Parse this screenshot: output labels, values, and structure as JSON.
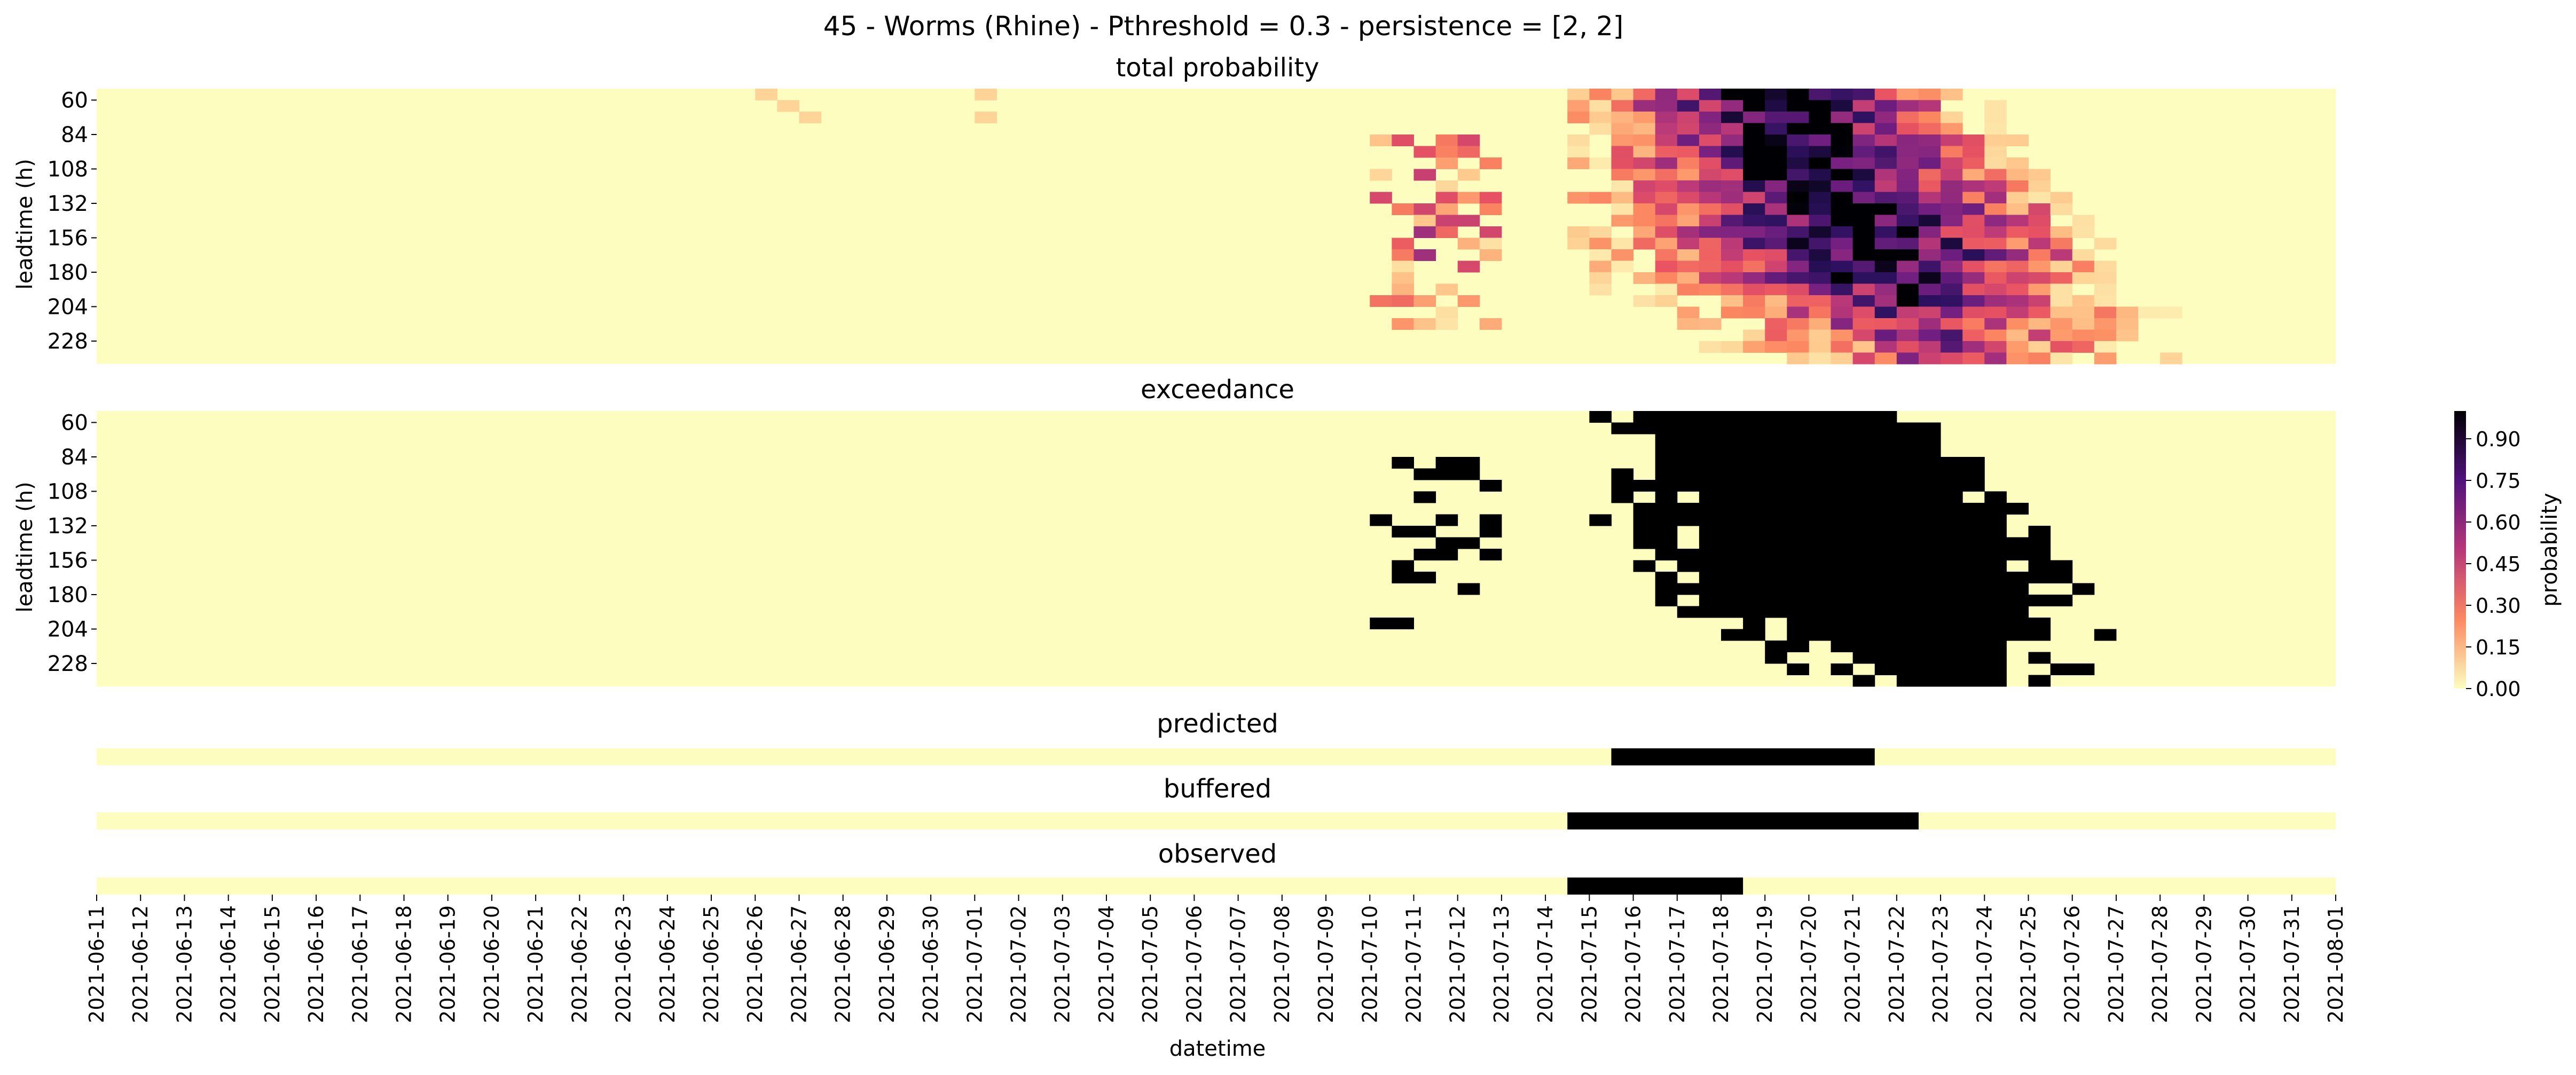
{
  "figure": {
    "suptitle": "45 - Worms (Rhine) - Pthreshold = 0.3 - persistence = [2, 2]",
    "xlabel": "datetime",
    "colorbar": {
      "label": "probability",
      "ticks": [
        "0.00",
        "0.15",
        "0.30",
        "0.45",
        "0.60",
        "0.75",
        "0.90"
      ],
      "tick_values": [
        0,
        0.15,
        0.3,
        0.45,
        0.6,
        0.75,
        0.9
      ],
      "vmin": 0,
      "vmax": 1,
      "colormap": "magma_r",
      "colors": {
        "low": "#fcfdbf",
        "mid_low": "#fc8961",
        "mid": "#b73779",
        "mid_high": "#51127c",
        "high": "#000004"
      }
    }
  },
  "chart_data": [
    {
      "type": "heatmap",
      "title": "total probability",
      "ylabel": "leadtime (h)",
      "y_ticks": [
        "60",
        "84",
        "108",
        "132",
        "156",
        "180",
        "204",
        "228"
      ],
      "leadtime_range_h": [
        60,
        240
      ],
      "x_start": "2021-06-11",
      "x_end": "2021-08-01",
      "cells_per_day": 2,
      "rows": 24,
      "description_of_values": "probability of exceedance per forecast run (x) and leadtime (y); near 0 except 2021-06-26/27, 2021-07-01, 2021-07-10 to 2021-07-12, and main event 2021-07-14 to 2021-07-22 reaching 1.0"
    },
    {
      "type": "heatmap",
      "title": "exceedance",
      "ylabel": "leadtime (h)",
      "y_ticks": [
        "60",
        "84",
        "108",
        "132",
        "156",
        "180",
        "204",
        "228"
      ],
      "threshold": 0.3,
      "values_binary": [
        0,
        1
      ]
    },
    {
      "type": "heatmap",
      "title": "predicted",
      "intervals": [
        [
          "2021-07-15",
          "2021-07-21"
        ]
      ]
    },
    {
      "type": "heatmap",
      "title": "buffered",
      "intervals": [
        [
          "2021-07-14",
          "2021-07-22"
        ]
      ]
    },
    {
      "type": "heatmap",
      "title": "observed",
      "intervals": [
        [
          "2021-07-14",
          "2021-07-18"
        ]
      ]
    }
  ],
  "x_tick_labels": [
    "2021-06-11",
    "2021-06-12",
    "2021-06-13",
    "2021-06-14",
    "2021-06-15",
    "2021-06-16",
    "2021-06-17",
    "2021-06-18",
    "2021-06-19",
    "2021-06-20",
    "2021-06-21",
    "2021-06-22",
    "2021-06-23",
    "2021-06-24",
    "2021-06-25",
    "2021-06-26",
    "2021-06-27",
    "2021-06-28",
    "2021-06-29",
    "2021-06-30",
    "2021-07-01",
    "2021-07-02",
    "2021-07-03",
    "2021-07-04",
    "2021-07-05",
    "2021-07-06",
    "2021-07-07",
    "2021-07-08",
    "2021-07-09",
    "2021-07-10",
    "2021-07-11",
    "2021-07-12",
    "2021-07-13",
    "2021-07-14",
    "2021-07-15",
    "2021-07-16",
    "2021-07-17",
    "2021-07-18",
    "2021-07-19",
    "2021-07-20",
    "2021-07-21",
    "2021-07-22",
    "2021-07-23",
    "2021-07-24",
    "2021-07-25",
    "2021-07-26",
    "2021-07-27",
    "2021-07-28",
    "2021-07-29",
    "2021-07-30",
    "2021-07-31",
    "2021-08-01"
  ]
}
